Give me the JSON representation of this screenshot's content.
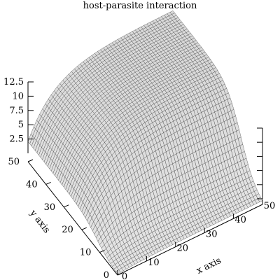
{
  "chart_data": {
    "type": "surface",
    "title": "host-parasite interaction",
    "xlabel": "x axis",
    "ylabel": "y axis",
    "zlabel": "",
    "xlim": [
      0,
      50
    ],
    "ylim": [
      0,
      50
    ],
    "zlim": [
      0,
      12.5
    ],
    "x_ticks": [
      "0",
      "10",
      "20",
      "30",
      "40",
      "50"
    ],
    "y_ticks": [
      "0",
      "10",
      "20",
      "30",
      "40",
      "50"
    ],
    "z_ticks": [
      "2.5",
      "5",
      "7.5",
      "10",
      "12.5"
    ],
    "grid_points": 51,
    "surface": {
      "corner_values": {
        "x0_y0": 0,
        "x50_y0": 0,
        "x0_y50": 0,
        "x50_y50": 12.5
      },
      "valley": "a trough runs along low x near y≈5, rising to a ridge of 12.5 at x=50, y=50"
    },
    "grid": false,
    "legend": "none"
  }
}
